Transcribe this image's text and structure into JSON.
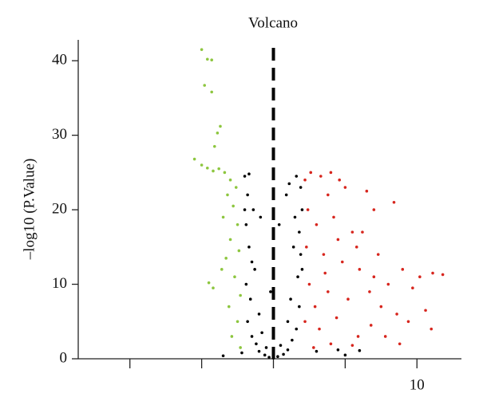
{
  "chart_data": {
    "type": "scatter",
    "title": "Volcano",
    "ylabel": "–log10 (P.Value)",
    "xlim": [
      -13.6,
      13.1
    ],
    "ylim": [
      0,
      42.8
    ],
    "xticks": [
      {
        "value": -10,
        "label": null
      },
      {
        "value": -5,
        "label": null
      },
      {
        "value": 0,
        "label": null
      },
      {
        "value": 5,
        "label": null
      },
      10
    ],
    "yticks": [
      0,
      10,
      20,
      30,
      40
    ],
    "vline": 0,
    "series": [
      {
        "color": "#8dc63f",
        "x": [
          -5,
          -4.6,
          -4.3,
          -4.8,
          -4.3,
          -3.7,
          -3.9,
          -4.1,
          -5.5,
          -5.0,
          -4.6,
          -4.2,
          -3.8,
          -3.4,
          -3.0,
          -2.6,
          -3.2,
          -2.8,
          -3.5,
          -2.5,
          -3.0,
          -2.4,
          -3.6,
          -2.7,
          -4.2,
          -2.3,
          -3.1,
          -2.5,
          -2.9,
          -2.3,
          -4.5,
          -3.3
        ],
        "y": [
          41.5,
          40.2,
          40.1,
          36.7,
          35.8,
          31.2,
          30.3,
          28.5,
          26.8,
          26.0,
          25.6,
          25.2,
          25.5,
          25.0,
          24.0,
          23.0,
          22.0,
          20.5,
          19.0,
          18.0,
          16.0,
          14.5,
          12.0,
          11.0,
          9.5,
          8.5,
          7.0,
          5.0,
          3.0,
          1.5,
          10.2,
          13.5
        ]
      },
      {
        "color": "#000000",
        "x": [
          -2.0,
          -1.8,
          -1.9,
          -1.7,
          -1.9,
          -1.6,
          -1.8,
          -1.5,
          -1.2,
          -1.0,
          -0.6,
          -0.3,
          0,
          0.3,
          0.7,
          1.0,
          1.3,
          1.6,
          1.8,
          1.7,
          1.9,
          1.8,
          2.0,
          1.9,
          1.6,
          -1.4,
          -1.3,
          -1.0,
          -0.8,
          1.2,
          1.4,
          1.0,
          -1.5,
          -2.0,
          2.0,
          1.5,
          -0.5,
          0.5,
          -1.7,
          0.9,
          1.1,
          -0.9,
          -0.2,
          0.4,
          3.0,
          4.5,
          6,
          -2.2,
          -3.5,
          5
        ],
        "y": [
          24.5,
          22,
          18,
          15,
          10,
          8,
          5,
          3,
          2,
          1,
          0.5,
          0.2,
          0.1,
          0.3,
          0.6,
          1.2,
          2.5,
          4,
          7,
          11,
          14,
          17,
          20,
          23,
          24.5,
          20,
          12,
          6,
          3.5,
          8,
          15,
          5,
          13,
          20,
          12,
          19,
          1.5,
          1.8,
          24.8,
          22,
          23.5,
          19,
          9,
          18,
          1.0,
          1.2,
          1.1,
          0.8,
          0.4,
          0.5
        ]
      },
      {
        "color": "#d7261e",
        "x": [
          2.2,
          2.6,
          3.3,
          4.0,
          4.6,
          5.0,
          3.8,
          2.4,
          3.0,
          4.2,
          5.5,
          6.2,
          7.0,
          8.4,
          6.5,
          2.3,
          3.5,
          4.8,
          6.0,
          7.3,
          8.0,
          9.0,
          10.2,
          11.1,
          11.8,
          9.7,
          2.5,
          3.8,
          5.2,
          6.7,
          7.5,
          8.6,
          9.4,
          10.6,
          11.0,
          2.2,
          3.2,
          4.4,
          5.9,
          6.8,
          7.8,
          8.8,
          2.8,
          4.0,
          5.5,
          3.6,
          4.5,
          5.8,
          2.9,
          7.0
        ],
        "y": [
          24,
          25,
          24.5,
          25,
          24,
          23,
          22,
          20,
          18,
          19,
          17,
          17,
          20,
          21,
          22.5,
          15,
          14,
          13,
          12,
          14,
          10,
          12,
          11,
          11.5,
          11.3,
          9.5,
          10,
          9,
          8,
          9,
          7,
          6,
          5,
          6.5,
          4,
          5,
          4,
          5.5,
          3,
          4.5,
          3,
          2,
          1.5,
          2,
          1.8,
          11.5,
          16,
          15,
          7,
          11
        ]
      }
    ]
  }
}
